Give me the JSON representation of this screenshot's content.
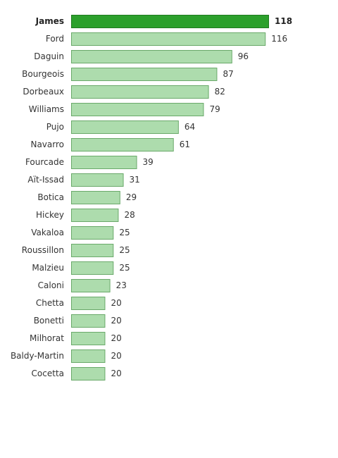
{
  "chart_data": {
    "type": "bar",
    "orientation": "horizontal",
    "categories": [
      "James",
      "Ford",
      "Daguin",
      "Bourgeois",
      "Dorbeaux",
      "Williams",
      "Pujo",
      "Navarro",
      "Fourcade",
      "Aït-Issad",
      "Botica",
      "Hickey",
      "Vakaloa",
      "Roussillon",
      "Malzieu",
      "Caloni",
      "Chetta",
      "Bonetti",
      "Milhorat",
      "Baldy-Martin",
      "Cocetta"
    ],
    "values": [
      118,
      116,
      96,
      87,
      82,
      79,
      64,
      61,
      39,
      31,
      29,
      28,
      25,
      25,
      25,
      23,
      20,
      20,
      20,
      20,
      20
    ],
    "highlight_index": 0,
    "colors": {
      "highlight": "#2ca02c",
      "highlight_stroke": "#1f7a1f",
      "bar": "#addcad",
      "bar_stroke": "#6aa96a"
    },
    "title": "",
    "xlabel": "",
    "ylabel": "",
    "xlim": [
      0,
      118
    ],
    "grid": false,
    "legend": "none"
  }
}
